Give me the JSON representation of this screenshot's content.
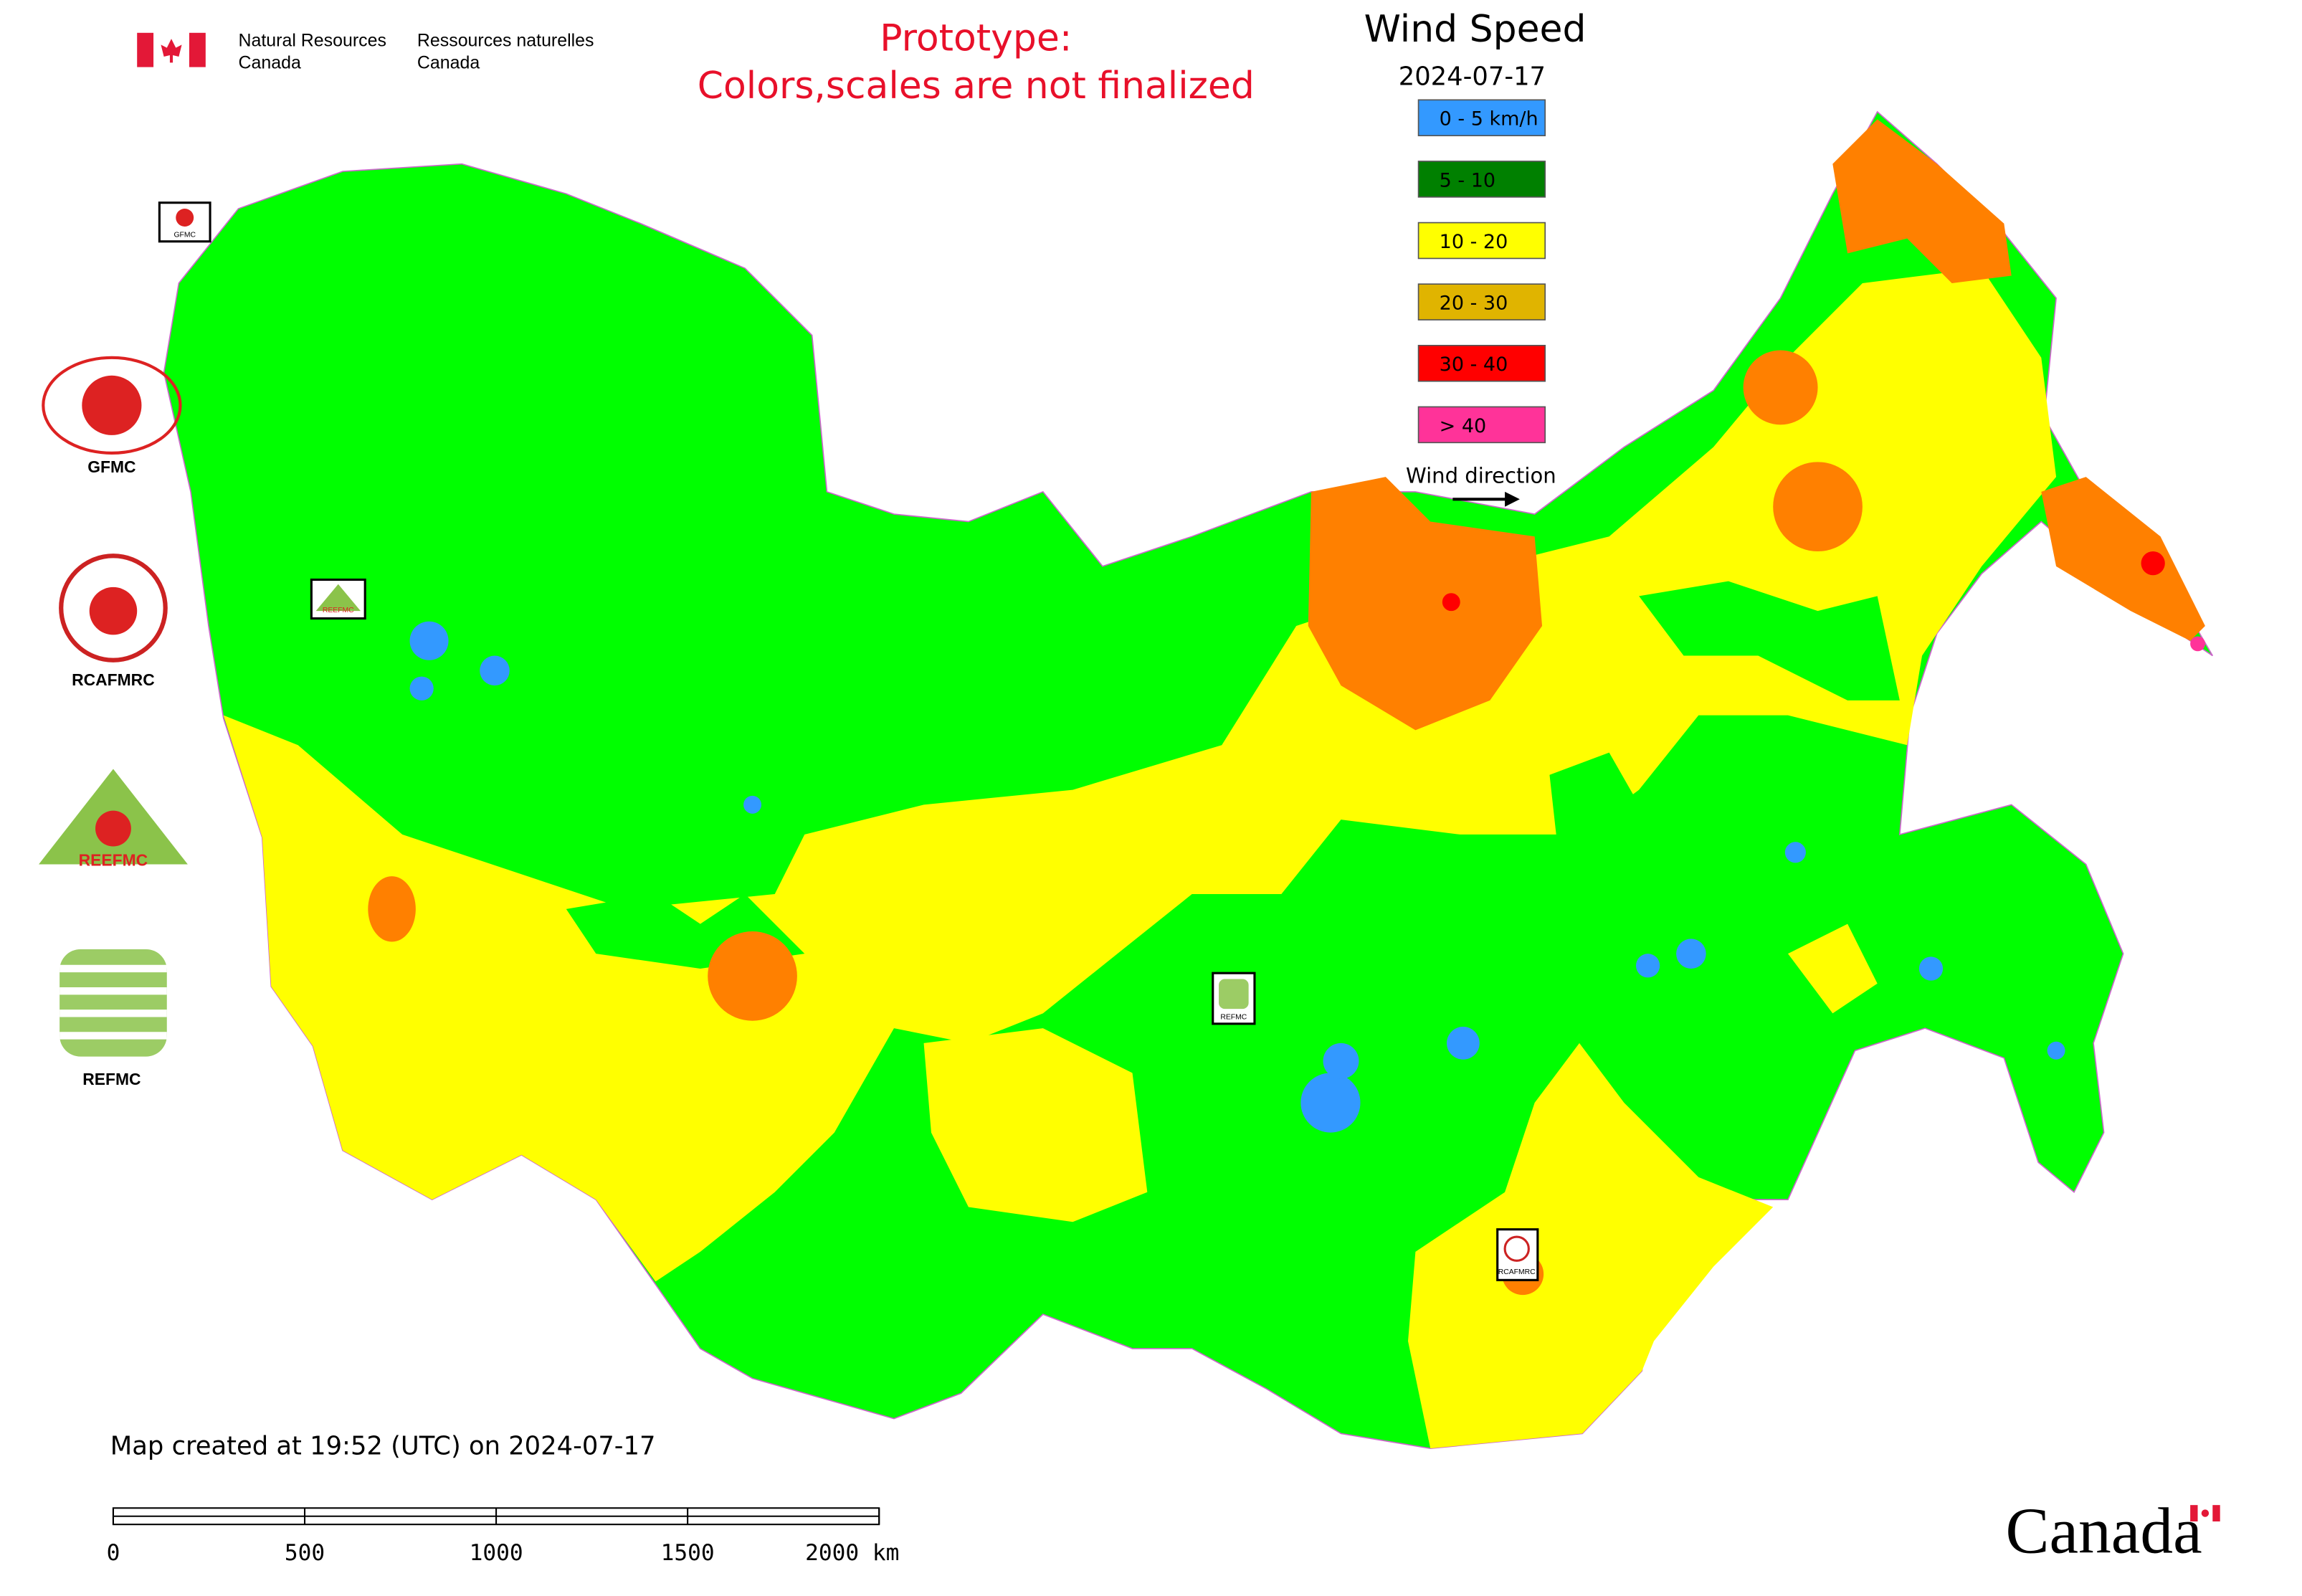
{
  "header": {
    "agency_en": [
      "Natural Resources",
      "Canada"
    ],
    "agency_fr": [
      "Ressources naturelles",
      "Canada"
    ]
  },
  "notice": [
    "Prototype:",
    "Colors,scales are not finalized"
  ],
  "legend": {
    "title": "Wind Speed",
    "date": "2024-07-17",
    "items": [
      {
        "label": "0 - 5 km/h",
        "color": "#3399ff"
      },
      {
        "label": "5 - 10",
        "color": "#008000"
      },
      {
        "label": "10 - 20",
        "color": "#ffff00"
      },
      {
        "label": "20 - 30",
        "color": "#e0b400"
      },
      {
        "label": "30 - 40",
        "color": "#ff0000"
      },
      {
        "label": "> 40",
        "color": "#ff3399"
      }
    ],
    "direction_label": "Wind direction"
  },
  "logos": [
    "GFMC",
    "RCAFMRC",
    "REEFMC",
    "REFMC"
  ],
  "map_markers": [
    "GFMC",
    "REEFMC",
    "REFMC",
    "RCAFMRC"
  ],
  "footer": {
    "created": "Map created at 19:52 (UTC) on 2024-07-17",
    "scale_ticks": [
      0,
      500,
      1000,
      1500,
      {
        "value": 2000,
        "label": "2000 km"
      }
    ],
    "wordmark": "Canada"
  }
}
